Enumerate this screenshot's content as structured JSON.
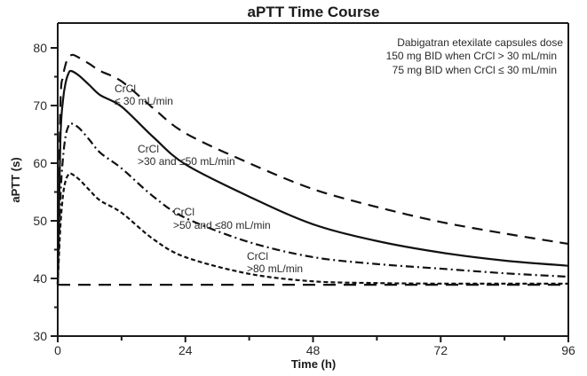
{
  "chart_data": {
    "type": "line",
    "title": "aPTT Time Course",
    "xlabel": "Time (h)",
    "ylabel": "aPTT (s)",
    "xlim": [
      0,
      96
    ],
    "ylim": [
      30,
      84
    ],
    "xticks": [
      0,
      24,
      48,
      72,
      96
    ],
    "xticks_minor": [
      12,
      36,
      60,
      84
    ],
    "yticks": [
      30,
      40,
      50,
      60,
      70,
      80
    ],
    "yticks_minor": [
      35,
      45,
      55,
      65,
      75
    ],
    "grid": false,
    "legend": "none",
    "annotation_box": {
      "lines": [
        "Dabigatran etexilate capsules dose",
        "150 mg BID when CrCl > 30 mL/min",
        "75 mg BID when CrCl  ≤ 30 mL/min"
      ],
      "placement": "top-right"
    },
    "series": [
      {
        "name": "CrCl ≤ 30 mL/min",
        "label_lines": [
          "CrCl",
          "≤ 30 mL/min"
        ],
        "style": "long-dash",
        "x": [
          0,
          0.5,
          1,
          1.5,
          2,
          2.8,
          4,
          6,
          8,
          12,
          18,
          24,
          36,
          48,
          60,
          72,
          84,
          96
        ],
        "y": [
          39,
          70,
          75,
          77.2,
          78.3,
          78.8,
          78.3,
          77.2,
          76.0,
          74.2,
          69.5,
          65.2,
          60.0,
          55.5,
          52.4,
          49.8,
          47.8,
          46.0
        ]
      },
      {
        "name": "CrCl >30 and ≤50 mL/min",
        "label_lines": [
          "CrCl",
          ">30 and ≤50 mL/min"
        ],
        "style": "solid",
        "x": [
          0,
          0.5,
          1,
          1.5,
          2,
          2.5,
          4,
          6,
          8,
          12,
          18,
          24,
          36,
          48,
          60,
          72,
          84,
          96
        ],
        "y": [
          39,
          64,
          71,
          74,
          75.5,
          76,
          75.2,
          73.5,
          71.8,
          69.8,
          64.5,
          59.8,
          54.2,
          49.4,
          46.5,
          44.5,
          43.1,
          42.2
        ]
      },
      {
        "name": "CrCl >50 and ≤80 mL/min",
        "label_lines": [
          "CrCl",
          ">50 and ≤80 mL/min"
        ],
        "style": "dash-dot",
        "x": [
          0,
          0.5,
          1,
          1.5,
          2,
          2.5,
          4,
          6,
          8,
          12,
          18,
          24,
          36,
          48,
          60,
          72,
          84,
          96
        ],
        "y": [
          39,
          54,
          61,
          64.8,
          66.4,
          66.9,
          66.1,
          64.0,
          61.8,
          59.1,
          54.2,
          50.5,
          46.3,
          43.7,
          42.5,
          41.7,
          40.9,
          40.3
        ]
      },
      {
        "name": "CrCl >80 mL/min",
        "label_lines": [
          "CrCl",
          ">80 mL/min"
        ],
        "style": "short-dash",
        "x": [
          0,
          0.5,
          1,
          1.5,
          2,
          2.5,
          4,
          6,
          8,
          12,
          18,
          24,
          36,
          48,
          60,
          72,
          84,
          96
        ],
        "y": [
          39,
          49,
          54.5,
          57,
          58,
          58.2,
          57.2,
          55.3,
          53.5,
          51.4,
          46.8,
          43.7,
          40.8,
          39.5,
          39.2,
          39.1,
          39.1,
          39.1
        ]
      },
      {
        "name": "Baseline",
        "label_lines": [],
        "style": "baseline-dash",
        "x": [
          0,
          96
        ],
        "y": [
          38.9,
          38.9
        ]
      }
    ]
  }
}
